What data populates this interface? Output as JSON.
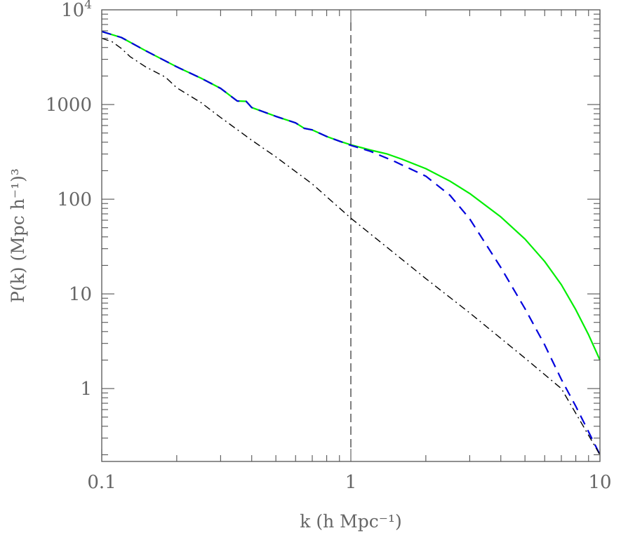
{
  "chart_data": {
    "type": "line",
    "xlabel": "k (h Mpc⁻¹)",
    "ylabel": "P(k) (Mpc h⁻¹)³",
    "xscale": "log",
    "yscale": "log",
    "xlim": [
      0.1,
      10
    ],
    "ylim": [
      0.17,
      10000
    ],
    "grid": false,
    "x_tick_labels": [
      {
        "value": 0.1,
        "label": "0.1"
      },
      {
        "value": 1,
        "label": "1"
      },
      {
        "value": 10,
        "label": "10"
      }
    ],
    "y_tick_labels": [
      {
        "value": 1,
        "label": "1"
      },
      {
        "value": 10,
        "label": "10"
      },
      {
        "value": 100,
        "label": "100"
      },
      {
        "value": 1000,
        "label": "1000"
      },
      {
        "value": 10000,
        "label": "10",
        "exponent": "4"
      }
    ],
    "vertical_reference_line": {
      "x": 1,
      "style": "dashed",
      "color": "#000000"
    },
    "series": [
      {
        "color": "#00ee00",
        "style": "solid",
        "x": [
          0.1,
          0.12,
          0.15,
          0.2,
          0.25,
          0.3,
          0.35,
          0.38,
          0.4,
          0.5,
          0.6,
          0.65,
          0.7,
          0.8,
          0.9,
          1.0,
          1.2,
          1.4,
          1.6,
          2.0,
          2.5,
          3.0,
          4.0,
          5.0,
          6.0,
          7.0,
          8.0,
          9.0,
          10.0
        ],
        "y": [
          5900,
          5100,
          3700,
          2500,
          1900,
          1480,
          1090,
          1080,
          930,
          750,
          640,
          560,
          540,
          460,
          410,
          375,
          330,
          300,
          265,
          210,
          155,
          115,
          65,
          38,
          22,
          12.5,
          6.8,
          3.7,
          2.0
        ]
      },
      {
        "color": "#0000dd",
        "style": "dashed",
        "x": [
          0.1,
          0.12,
          0.15,
          0.2,
          0.25,
          0.3,
          0.35,
          0.38,
          0.4,
          0.5,
          0.6,
          0.65,
          0.7,
          0.8,
          0.9,
          1.0,
          1.2,
          1.5,
          2.0,
          2.5,
          3.0,
          4.0,
          5.0,
          6.0,
          7.0,
          8.0,
          9.0,
          10.0
        ],
        "y": [
          5900,
          5100,
          3700,
          2500,
          1900,
          1480,
          1090,
          1080,
          930,
          750,
          640,
          560,
          540,
          460,
          410,
          370,
          320,
          250,
          175,
          110,
          62,
          19,
          7.0,
          2.9,
          1.25,
          0.65,
          0.35,
          0.2
        ]
      },
      {
        "color": "#000000",
        "style": "dashdot",
        "x": [
          0.1,
          0.11,
          0.12,
          0.13,
          0.15,
          0.18,
          0.2,
          0.25,
          0.3,
          0.4,
          0.5,
          0.7,
          1.0,
          2.0,
          3.0,
          5.0,
          7.0,
          10.0
        ],
        "y": [
          5000,
          4600,
          3900,
          3200,
          2500,
          1950,
          1500,
          1050,
          730,
          420,
          280,
          145,
          63,
          14.5,
          6.3,
          2.1,
          1.0,
          0.2
        ]
      }
    ]
  }
}
